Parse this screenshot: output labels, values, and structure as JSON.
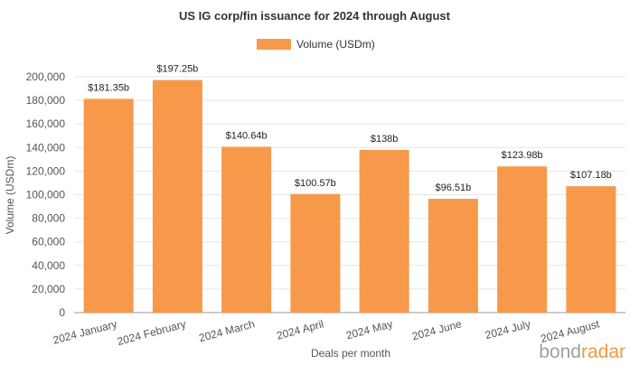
{
  "chart_data": {
    "type": "bar",
    "title": "US IG corp/fin issuance for 2024 through August",
    "xlabel": "Deals per month",
    "ylabel": "Volume (USDm)",
    "legend": {
      "position": "top-center",
      "entries": [
        "Volume (USDm)"
      ]
    },
    "categories": [
      "2024 January",
      "2024 February",
      "2024 March",
      "2024 April",
      "2024 May",
      "2024 June",
      "2024 July",
      "2024 August"
    ],
    "series": [
      {
        "name": "Volume (USDm)",
        "color": "#f7994a",
        "values": [
          181350,
          197250,
          140640,
          100570,
          138000,
          96510,
          123980,
          107180
        ],
        "labels": [
          "$181.35b",
          "$197.25b",
          "$140.64b",
          "$100.57b",
          "$138b",
          "$96.51b",
          "$123.98b",
          "$107.18b"
        ]
      }
    ],
    "ylim": [
      0,
      200000
    ],
    "yticks": [
      0,
      20000,
      40000,
      60000,
      80000,
      100000,
      120000,
      140000,
      160000,
      180000,
      200000
    ],
    "ytick_labels": [
      "0",
      "20,000",
      "40,000",
      "60,000",
      "80,000",
      "100,000",
      "120,000",
      "140,000",
      "160,000",
      "180,000",
      "200,000"
    ],
    "grid": true
  },
  "branding": {
    "logo_part1": "bond",
    "logo_part2": "radar"
  }
}
